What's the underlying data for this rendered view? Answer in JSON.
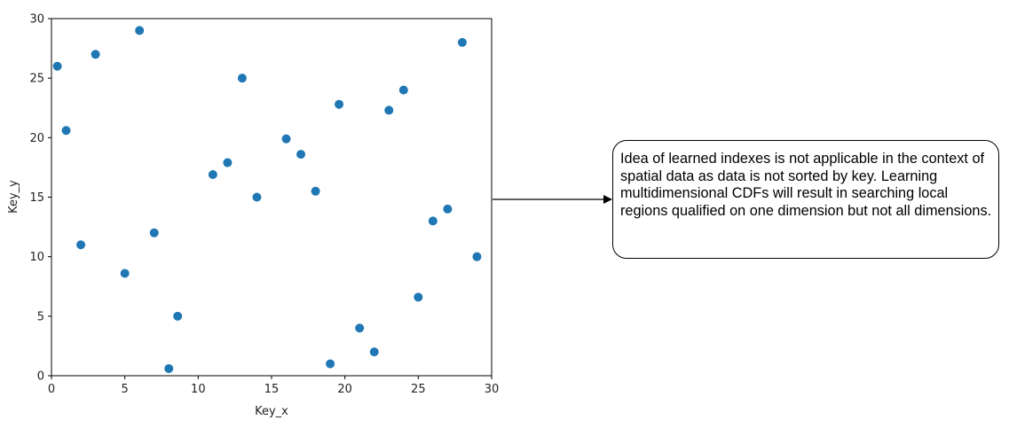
{
  "chart_data": {
    "type": "scatter",
    "title": "",
    "xlabel": "Key_x",
    "ylabel": "Key_y",
    "xlim": [
      0,
      30
    ],
    "ylim": [
      0,
      30
    ],
    "xticks": [
      0,
      5,
      10,
      15,
      20,
      25,
      30
    ],
    "yticks": [
      0,
      5,
      10,
      15,
      20,
      25,
      30
    ],
    "grid": false,
    "marker_color": "#1f77b4",
    "points": [
      {
        "x": 0.4,
        "y": 26
      },
      {
        "x": 1,
        "y": 20.6
      },
      {
        "x": 2,
        "y": 11
      },
      {
        "x": 3,
        "y": 27
      },
      {
        "x": 5,
        "y": 8.6
      },
      {
        "x": 6,
        "y": 29
      },
      {
        "x": 7,
        "y": 12
      },
      {
        "x": 8,
        "y": 0.6
      },
      {
        "x": 8.6,
        "y": 5
      },
      {
        "x": 11,
        "y": 16.9
      },
      {
        "x": 12,
        "y": 17.9
      },
      {
        "x": 13,
        "y": 25
      },
      {
        "x": 14,
        "y": 15
      },
      {
        "x": 16,
        "y": 19.9
      },
      {
        "x": 17,
        "y": 18.6
      },
      {
        "x": 18,
        "y": 15.5
      },
      {
        "x": 19,
        "y": 1
      },
      {
        "x": 19.6,
        "y": 22.8
      },
      {
        "x": 21,
        "y": 4
      },
      {
        "x": 22,
        "y": 2
      },
      {
        "x": 23,
        "y": 22.3
      },
      {
        "x": 24,
        "y": 24
      },
      {
        "x": 25,
        "y": 6.6
      },
      {
        "x": 26,
        "y": 13
      },
      {
        "x": 27,
        "y": 14
      },
      {
        "x": 28,
        "y": 28
      },
      {
        "x": 29,
        "y": 10
      }
    ]
  },
  "annotation": {
    "text": "Idea of learned indexes is not applicable in the context of spatial data as data is not sorted by key. Learning multidimensional CDFs will result in searching local regions qualified on one dimension but not all dimensions."
  }
}
